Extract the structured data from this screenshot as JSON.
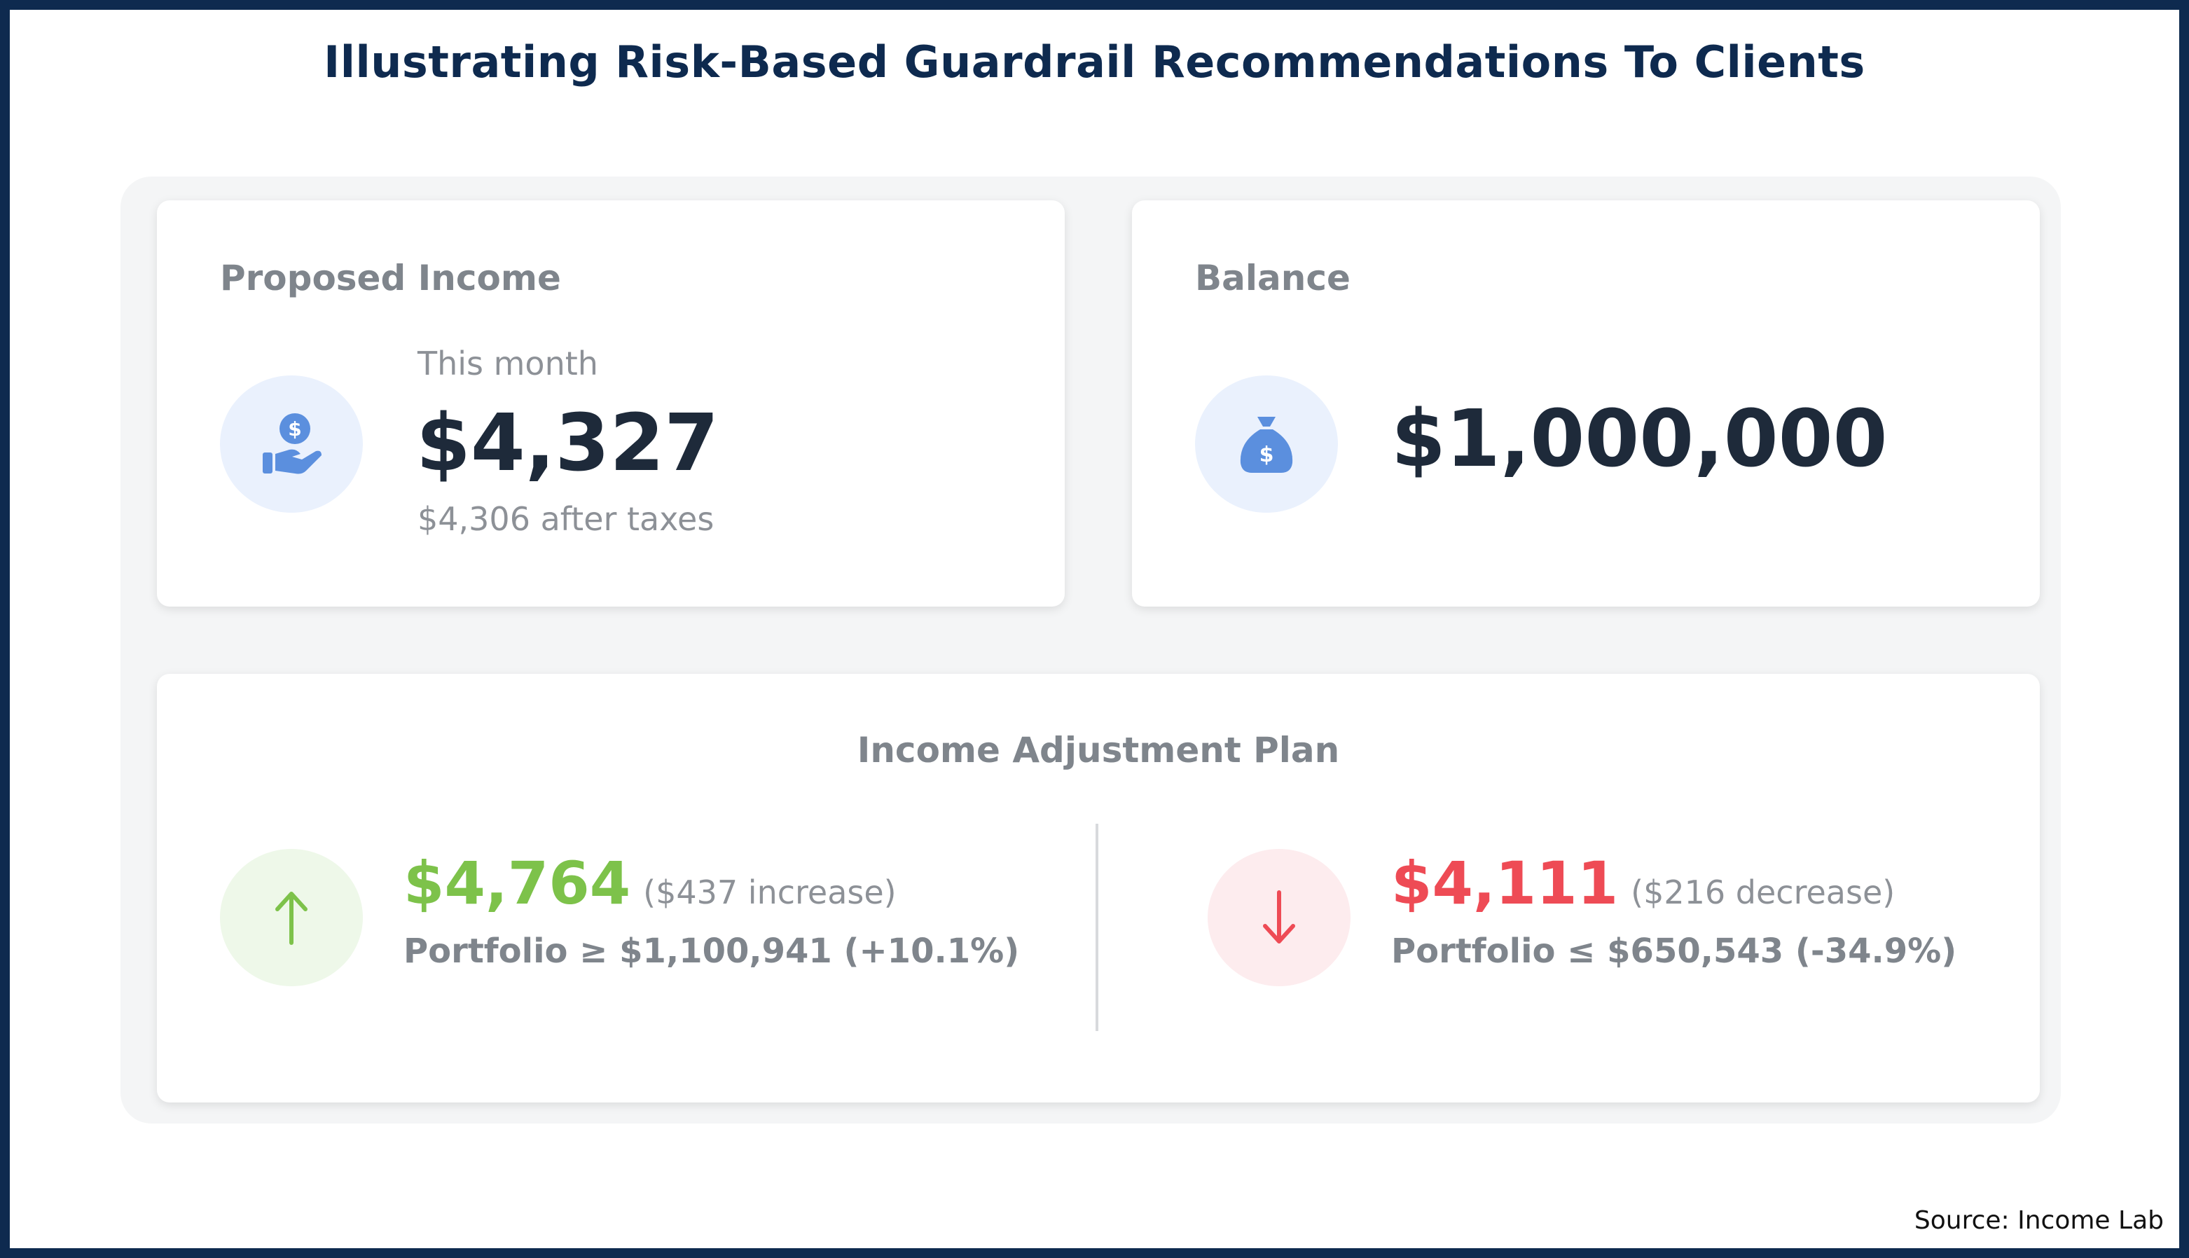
{
  "title": "Illustrating Risk-Based Guardrail Recommendations To Clients",
  "proposed_income": {
    "label": "Proposed Income",
    "period": "This month",
    "value": "$4,327",
    "after_taxes": "$4,306 after taxes",
    "icon": "hand-dollar-icon"
  },
  "balance": {
    "label": "Balance",
    "value": "$1,000,000",
    "icon": "money-bag-icon"
  },
  "plan": {
    "title": "Income Adjustment Plan",
    "increase": {
      "amount": "$4,764",
      "change": "($437 increase)",
      "condition": "Portfolio ≥ $1,100,941 (+10.1%)",
      "icon": "arrow-up-icon",
      "color": "#7dc24a"
    },
    "decrease": {
      "amount": "$4,111",
      "change": "($216 decrease)",
      "condition": "Portfolio ≤ $650,543 (-34.9%)",
      "icon": "arrow-down-icon",
      "color": "#ee4b55"
    }
  },
  "source": "Source: Income Lab",
  "colors": {
    "frame": "#0e2a4f",
    "icon_blue": "#5b8fde",
    "value_dark": "#1e2a3a"
  }
}
